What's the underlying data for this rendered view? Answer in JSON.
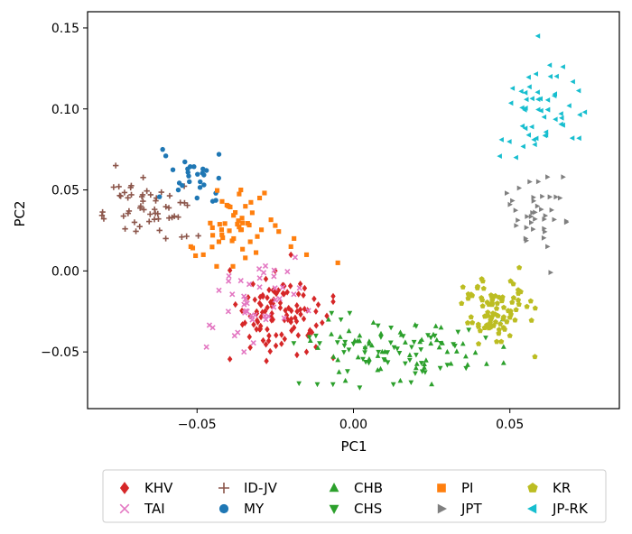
{
  "chart_data": {
    "type": "scatter",
    "title": "",
    "xlabel": "PC1",
    "ylabel": "PC2",
    "xlim": [
      -0.085,
      0.085
    ],
    "ylim": [
      -0.085,
      0.16
    ],
    "xticks": [
      -0.05,
      0.0,
      0.05
    ],
    "xtick_labels": [
      "−0.05",
      "0.00",
      "0.05"
    ],
    "yticks": [
      -0.05,
      0.0,
      0.05,
      0.1,
      0.15
    ],
    "ytick_labels": [
      "−0.05",
      "0.00",
      "0.05",
      "0.10",
      "0.15"
    ],
    "grid": false,
    "legend_position": "below plot, 5 columns",
    "series": [
      {
        "name": "KHV",
        "marker": "diamond",
        "color": "#d62728",
        "center": [
          -0.023,
          -0.027
        ],
        "spread": [
          0.0075,
          0.013
        ],
        "count": 110,
        "points": [
          [
            -0.022,
            -0.042
          ],
          [
            -0.015,
            -0.05
          ],
          [
            -0.012,
            -0.047
          ],
          [
            -0.016,
            -0.015
          ],
          [
            -0.025,
            0.0
          ],
          [
            -0.02,
            0.01
          ],
          [
            -0.03,
            -0.02
          ],
          [
            -0.027,
            -0.04
          ],
          [
            -0.019,
            -0.035
          ],
          [
            -0.024,
            -0.012
          ],
          [
            -0.01,
            -0.032
          ],
          [
            -0.033,
            -0.028
          ],
          [
            -0.028,
            -0.005
          ],
          [
            -0.018,
            -0.025
          ],
          [
            -0.021,
            -0.03
          ],
          [
            -0.026,
            -0.022
          ],
          [
            -0.014,
            -0.038
          ],
          [
            -0.031,
            -0.036
          ],
          [
            -0.017,
            -0.008
          ],
          [
            -0.023,
            -0.045
          ],
          [
            -0.029,
            -0.015
          ],
          [
            -0.012,
            -0.025
          ]
        ]
      },
      {
        "name": "TAI",
        "marker": "x",
        "color": "#e377c2",
        "center": [
          -0.032,
          -0.018
        ],
        "spread": [
          0.008,
          0.012
        ],
        "count": 45,
        "points": [
          [
            -0.047,
            -0.047
          ],
          [
            -0.035,
            -0.05
          ],
          [
            -0.045,
            -0.035
          ],
          [
            -0.043,
            -0.012
          ],
          [
            -0.04,
            -0.025
          ],
          [
            -0.03,
            -0.01
          ],
          [
            -0.037,
            -0.038
          ],
          [
            -0.034,
            -0.02
          ],
          [
            -0.028,
            -0.03
          ],
          [
            -0.036,
            -0.006
          ],
          [
            -0.025,
            -0.018
          ],
          [
            -0.038,
            -0.04
          ]
        ]
      },
      {
        "name": "ID-JV",
        "marker": "plus",
        "color": "#8c564b",
        "center": [
          -0.065,
          0.04
        ],
        "spread": [
          0.007,
          0.009
        ],
        "count": 55,
        "points": [
          [
            -0.076,
            0.065
          ],
          [
            -0.075,
            0.052
          ],
          [
            -0.071,
            0.047
          ],
          [
            -0.073,
            0.026
          ],
          [
            -0.062,
            0.025
          ],
          [
            -0.054,
            0.042
          ],
          [
            -0.06,
            0.02
          ],
          [
            -0.065,
            0.035
          ],
          [
            -0.068,
            0.04
          ],
          [
            -0.058,
            0.033
          ],
          [
            -0.07,
            0.03
          ],
          [
            -0.063,
            0.045
          ]
        ]
      },
      {
        "name": "MY",
        "marker": "circle",
        "color": "#1f77b4",
        "center": [
          -0.051,
          0.058
        ],
        "spread": [
          0.005,
          0.007
        ],
        "count": 28,
        "points": [
          [
            -0.061,
            0.075
          ],
          [
            -0.06,
            0.071
          ],
          [
            -0.047,
            0.062
          ],
          [
            -0.043,
            0.072
          ],
          [
            -0.056,
            0.05
          ],
          [
            -0.05,
            0.045
          ],
          [
            -0.044,
            0.048
          ],
          [
            -0.053,
            0.063
          ],
          [
            -0.049,
            0.055
          ],
          [
            -0.045,
            0.043
          ]
        ]
      },
      {
        "name": "CHB",
        "marker": "triangle-up",
        "color": "#2ca02c",
        "center": [
          0.015,
          -0.048
        ],
        "spread": [
          0.015,
          0.009
        ],
        "count": 60,
        "points": [
          [
            -0.008,
            -0.03
          ],
          [
            0.005,
            -0.045
          ],
          [
            0.015,
            -0.038
          ],
          [
            0.02,
            -0.06
          ],
          [
            0.03,
            -0.05
          ],
          [
            0.025,
            -0.07
          ],
          [
            -0.005,
            -0.055
          ],
          [
            0.01,
            -0.05
          ],
          [
            0.035,
            -0.045
          ],
          [
            0.018,
            -0.052
          ],
          [
            0.028,
            -0.035
          ],
          [
            0.002,
            -0.04
          ]
        ]
      },
      {
        "name": "CHS",
        "marker": "triangle-down",
        "color": "#2ca02c",
        "center": [
          0.012,
          -0.048
        ],
        "spread": [
          0.015,
          0.01
        ],
        "count": 60,
        "points": [
          [
            0.002,
            -0.072
          ],
          [
            0.012,
            -0.035
          ],
          [
            -0.012,
            -0.04
          ],
          [
            0.008,
            -0.05
          ],
          [
            0.022,
            -0.062
          ],
          [
            0.03,
            -0.058
          ],
          [
            0.0,
            -0.045
          ],
          [
            0.018,
            -0.055
          ],
          [
            0.036,
            -0.06
          ],
          [
            0.026,
            -0.04
          ],
          [
            -0.004,
            -0.03
          ],
          [
            0.014,
            -0.048
          ]
        ]
      },
      {
        "name": "PI",
        "marker": "square",
        "color": "#ff7f0e",
        "center": [
          -0.037,
          0.027
        ],
        "spread": [
          0.007,
          0.011
        ],
        "count": 55,
        "points": [
          [
            -0.052,
            0.015
          ],
          [
            -0.048,
            0.01
          ],
          [
            -0.045,
            0.022
          ],
          [
            -0.04,
            0.04
          ],
          [
            -0.036,
            0.05
          ],
          [
            -0.03,
            0.045
          ],
          [
            -0.025,
            0.028
          ],
          [
            -0.02,
            0.015
          ],
          [
            -0.019,
            0.02
          ],
          [
            -0.015,
            0.01
          ],
          [
            -0.005,
            0.005
          ],
          [
            -0.033,
            0.018
          ]
        ]
      },
      {
        "name": "JPT",
        "marker": "triangle-right",
        "color": "#7f7f7f",
        "center": [
          0.057,
          0.035
        ],
        "spread": [
          0.005,
          0.011
        ],
        "count": 40,
        "points": [
          [
            0.049,
            0.048
          ],
          [
            0.062,
            0.058
          ],
          [
            0.067,
            0.058
          ],
          [
            0.068,
            0.03
          ],
          [
            0.062,
            0.015
          ],
          [
            0.055,
            0.02
          ],
          [
            0.05,
            0.041
          ],
          [
            0.058,
            0.032
          ],
          [
            0.063,
            -0.001
          ],
          [
            0.052,
            0.028
          ],
          [
            0.066,
            0.045
          ],
          [
            0.06,
            0.038
          ]
        ]
      },
      {
        "name": "KR",
        "marker": "pentagon",
        "color": "#bcbd22",
        "center": [
          0.046,
          -0.025
        ],
        "spread": [
          0.0055,
          0.0085
        ],
        "count": 85,
        "points": [
          [
            0.035,
            -0.01
          ],
          [
            0.04,
            -0.045
          ],
          [
            0.053,
            0.002
          ],
          [
            0.058,
            -0.053
          ],
          [
            0.05,
            -0.04
          ],
          [
            0.042,
            -0.028
          ],
          [
            0.046,
            -0.02
          ],
          [
            0.038,
            -0.032
          ],
          [
            0.052,
            -0.024
          ],
          [
            0.044,
            -0.015
          ],
          [
            0.048,
            -0.035
          ],
          [
            0.041,
            -0.005
          ]
        ]
      },
      {
        "name": "JP-RK",
        "marker": "triangle-left",
        "color": "#17becf",
        "center": [
          0.06,
          0.1
        ],
        "spread": [
          0.006,
          0.015
        ],
        "count": 55,
        "points": [
          [
            0.059,
            0.145
          ],
          [
            0.067,
            0.126
          ],
          [
            0.063,
            0.12
          ],
          [
            0.055,
            0.11
          ],
          [
            0.074,
            0.098
          ],
          [
            0.069,
            0.102
          ],
          [
            0.052,
            0.07
          ],
          [
            0.058,
            0.078
          ],
          [
            0.067,
            0.09
          ],
          [
            0.07,
            0.082
          ],
          [
            0.061,
            0.095
          ],
          [
            0.055,
            0.088
          ]
        ]
      }
    ]
  }
}
